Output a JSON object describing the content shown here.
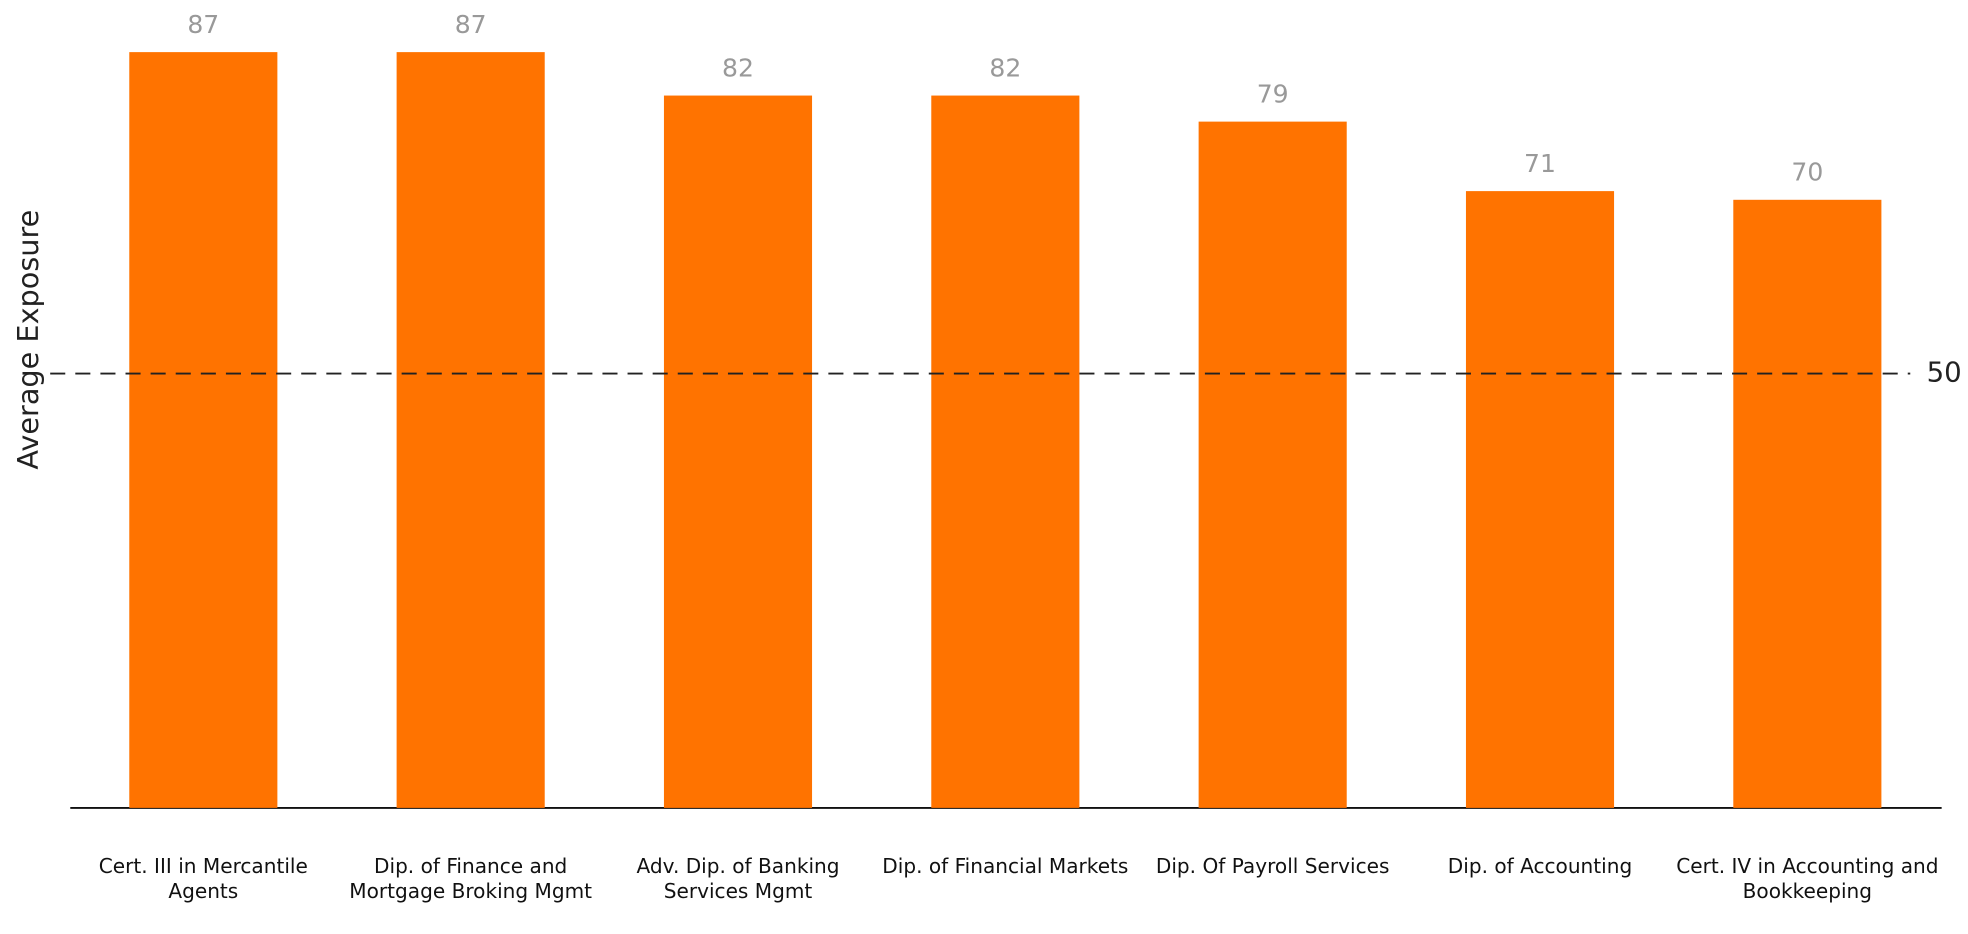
{
  "chart_data": {
    "type": "bar",
    "y_axis_label": "Average Exposure",
    "categories": [
      "Cert. III in Mercantile Agents",
      "Dip. of Finance and Mortgage Broking Mgmt",
      "Adv. Dip. of Banking Services Mgmt",
      "Dip. of Financial Markets",
      "Dip. Of Payroll Services",
      "Dip. of Accounting",
      "Cert. IV in Accounting and Bookkeeping"
    ],
    "values": [
      87,
      87,
      82,
      82,
      79,
      71,
      70
    ],
    "color": "#ff7300",
    "ylim": [
      0,
      93
    ],
    "reference_line": 50
  }
}
